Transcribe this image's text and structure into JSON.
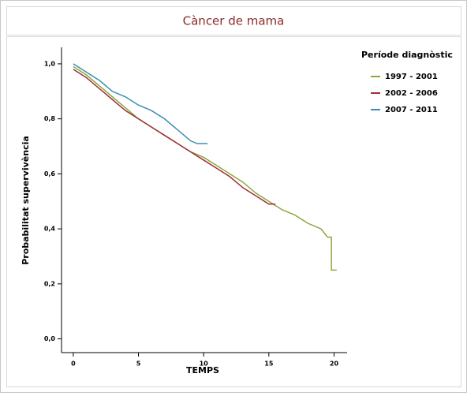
{
  "chart_data": {
    "type": "line",
    "title": "Càncer de mama",
    "x_label": "TEMPS",
    "y_label": "Probabilitat supervivència",
    "legend_title": "Període diagnòstic",
    "legend_position": "right",
    "xlim": [
      -0.9,
      21
    ],
    "xticks": [
      0,
      5,
      10,
      15,
      20
    ],
    "ylim": [
      -0.05,
      1.06
    ],
    "yticks": [
      {
        "value": 0,
        "label": "0,0"
      },
      {
        "value": 0.2,
        "label": "0,2"
      },
      {
        "value": 0.4,
        "label": "0,4"
      },
      {
        "value": 0.6,
        "label": "0,6"
      },
      {
        "value": 0.8,
        "label": "0,8"
      },
      {
        "value": 1,
        "label": "1,0"
      }
    ],
    "series": [
      {
        "name": "1997 - 2001",
        "color": "#8aa83c",
        "x": [
          0,
          1,
          2,
          3,
          4,
          5,
          6,
          7,
          8,
          9,
          10,
          11,
          12,
          13,
          14,
          15,
          16,
          17,
          18,
          19,
          19.5,
          19.8,
          19.8,
          20.2
        ],
        "values": [
          0.99,
          0.96,
          0.92,
          0.88,
          0.84,
          0.8,
          0.77,
          0.74,
          0.71,
          0.68,
          0.66,
          0.63,
          0.6,
          0.57,
          0.53,
          0.5,
          0.47,
          0.45,
          0.42,
          0.4,
          0.37,
          0.37,
          0.25,
          0.25
        ]
      },
      {
        "name": "2002 - 2006",
        "color": "#9e2f3a",
        "x": [
          0,
          1,
          2,
          3,
          4,
          5,
          6,
          7,
          8,
          9,
          10,
          11,
          12,
          13,
          14,
          15,
          15.5
        ],
        "values": [
          0.98,
          0.95,
          0.91,
          0.87,
          0.83,
          0.8,
          0.77,
          0.74,
          0.71,
          0.68,
          0.65,
          0.62,
          0.59,
          0.55,
          0.52,
          0.49,
          0.49
        ]
      },
      {
        "name": "2007 - 2011",
        "color": "#3b8fae",
        "x": [
          0,
          1,
          2,
          3,
          4,
          5,
          6,
          7,
          8,
          9,
          9.5,
          10.3
        ],
        "values": [
          1,
          0.97,
          0.94,
          0.9,
          0.88,
          0.85,
          0.83,
          0.8,
          0.76,
          0.72,
          0.71,
          0.71
        ]
      }
    ]
  }
}
